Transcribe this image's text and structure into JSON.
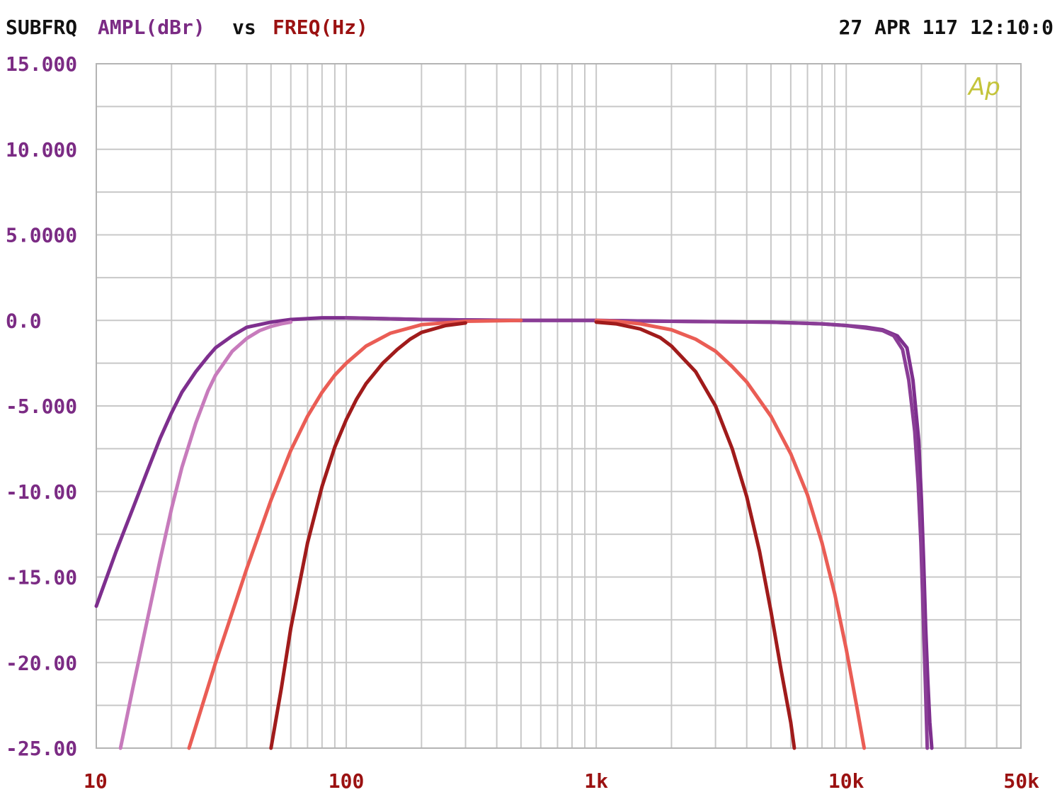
{
  "header": {
    "instrument": "SUBFRQ",
    "y_quantity": "AMPL(dBr)",
    "vs": "vs",
    "x_quantity": "FREQ(Hz)",
    "timestamp": "27 APR 117 12:10:0"
  },
  "logo_text": "Ap",
  "colors": {
    "black": "#111111",
    "purple_text": "#7b2b84",
    "red_text": "#9b1111",
    "logo": "#c4c43a"
  },
  "chart_data": {
    "type": "line",
    "x_scale": "log",
    "xlim": [
      10,
      50000
    ],
    "ylim": [
      -25,
      15
    ],
    "grid": true,
    "y_ticks": [
      {
        "value": 15,
        "label": "15.000"
      },
      {
        "value": 10,
        "label": "10.000"
      },
      {
        "value": 5,
        "label": "5.0000"
      },
      {
        "value": 0,
        "label": "0.0"
      },
      {
        "value": -5,
        "label": "-5.000"
      },
      {
        "value": -10,
        "label": "-10.00"
      },
      {
        "value": -15,
        "label": "-15.00"
      },
      {
        "value": -20,
        "label": "-20.00"
      },
      {
        "value": -25,
        "label": "-25.00"
      }
    ],
    "x_ticks": [
      {
        "value": 10,
        "label": "10"
      },
      {
        "value": 100,
        "label": "100"
      },
      {
        "value": 1000,
        "label": "1k"
      },
      {
        "value": 10000,
        "label": "10k"
      },
      {
        "value": 50000,
        "label": "50k"
      }
    ],
    "series": [
      {
        "color": "#7e2f8e",
        "points": [
          [
            10,
            -16.7
          ],
          [
            12,
            -13.5
          ],
          [
            14,
            -11
          ],
          [
            16,
            -8.8
          ],
          [
            18,
            -6.9
          ],
          [
            20,
            -5.4
          ],
          [
            22,
            -4.2
          ],
          [
            25,
            -3
          ],
          [
            28,
            -2.1
          ],
          [
            30,
            -1.6
          ],
          [
            35,
            -0.9
          ],
          [
            40,
            -0.4
          ],
          [
            50,
            -0.1
          ],
          [
            60,
            0.05
          ],
          [
            80,
            0.15
          ],
          [
            100,
            0.15
          ],
          [
            200,
            0.05
          ],
          [
            500,
            0
          ],
          [
            1000,
            0
          ],
          [
            2000,
            -0.05
          ],
          [
            5000,
            -0.1
          ],
          [
            8000,
            -0.2
          ],
          [
            10000,
            -0.3
          ],
          [
            12000,
            -0.4
          ],
          [
            14000,
            -0.55
          ],
          [
            16000,
            -0.9
          ],
          [
            17500,
            -1.6
          ],
          [
            18500,
            -3.5
          ],
          [
            19500,
            -7
          ],
          [
            20000,
            -10.5
          ],
          [
            20400,
            -14
          ],
          [
            20800,
            -18
          ],
          [
            21200,
            -21
          ],
          [
            21600,
            -23.5
          ],
          [
            22000,
            -25
          ]
        ]
      },
      {
        "color": "#8a3d96",
        "points": [
          [
            100,
            0.15
          ],
          [
            200,
            0.05
          ],
          [
            500,
            0
          ],
          [
            1000,
            0
          ],
          [
            2000,
            -0.05
          ],
          [
            5000,
            -0.1
          ],
          [
            8000,
            -0.2
          ],
          [
            10000,
            -0.3
          ],
          [
            12000,
            -0.45
          ],
          [
            14000,
            -0.6
          ],
          [
            15500,
            -0.9
          ],
          [
            16800,
            -1.7
          ],
          [
            17800,
            -3.5
          ],
          [
            18800,
            -6.5
          ],
          [
            19400,
            -9.5
          ],
          [
            19900,
            -13
          ],
          [
            20300,
            -17
          ],
          [
            20700,
            -21
          ],
          [
            21100,
            -25
          ]
        ]
      },
      {
        "color": "#c77bbc",
        "points": [
          [
            12.5,
            -25
          ],
          [
            14,
            -21.5
          ],
          [
            16,
            -17.5
          ],
          [
            18,
            -14
          ],
          [
            20,
            -11
          ],
          [
            22,
            -8.6
          ],
          [
            25,
            -6
          ],
          [
            28,
            -4.1
          ],
          [
            30,
            -3.2
          ],
          [
            35,
            -1.8
          ],
          [
            40,
            -1.05
          ],
          [
            45,
            -0.6
          ],
          [
            50,
            -0.35
          ],
          [
            55,
            -0.2
          ],
          [
            60,
            -0.1
          ]
        ]
      },
      {
        "color": "#ea5d55",
        "points": [
          [
            23.5,
            -25
          ],
          [
            30,
            -20
          ],
          [
            40,
            -14.5
          ],
          [
            50,
            -10.5
          ],
          [
            60,
            -7.6
          ],
          [
            70,
            -5.6
          ],
          [
            80,
            -4.2
          ],
          [
            90,
            -3.2
          ],
          [
            100,
            -2.5
          ],
          [
            120,
            -1.5
          ],
          [
            150,
            -0.75
          ],
          [
            200,
            -0.25
          ],
          [
            300,
            -0.05
          ],
          [
            500,
            0
          ]
        ]
      },
      {
        "color": "#a01b1b",
        "points": [
          [
            50,
            -25
          ],
          [
            55,
            -21.5
          ],
          [
            60,
            -18
          ],
          [
            70,
            -13
          ],
          [
            80,
            -9.7
          ],
          [
            90,
            -7.4
          ],
          [
            100,
            -5.8
          ],
          [
            110,
            -4.6
          ],
          [
            120,
            -3.7
          ],
          [
            140,
            -2.5
          ],
          [
            160,
            -1.7
          ],
          [
            180,
            -1.1
          ],
          [
            200,
            -0.7
          ],
          [
            250,
            -0.3
          ],
          [
            300,
            -0.15
          ]
        ]
      },
      {
        "color": "#ea5d55",
        "points": [
          [
            1000,
            0
          ],
          [
            1200,
            -0.05
          ],
          [
            1500,
            -0.2
          ],
          [
            2000,
            -0.55
          ],
          [
            2500,
            -1.1
          ],
          [
            3000,
            -1.8
          ],
          [
            3500,
            -2.7
          ],
          [
            4000,
            -3.6
          ],
          [
            5000,
            -5.6
          ],
          [
            6000,
            -7.8
          ],
          [
            7000,
            -10.2
          ],
          [
            8000,
            -13
          ],
          [
            9000,
            -16
          ],
          [
            10000,
            -19.2
          ],
          [
            11000,
            -22.5
          ],
          [
            11800,
            -25
          ]
        ]
      },
      {
        "color": "#a01b1b",
        "points": [
          [
            1000,
            -0.1
          ],
          [
            1200,
            -0.2
          ],
          [
            1500,
            -0.5
          ],
          [
            1800,
            -1
          ],
          [
            2000,
            -1.5
          ],
          [
            2500,
            -3
          ],
          [
            3000,
            -5
          ],
          [
            3500,
            -7.5
          ],
          [
            4000,
            -10.3
          ],
          [
            4500,
            -13.5
          ],
          [
            5000,
            -17
          ],
          [
            5500,
            -20.5
          ],
          [
            6000,
            -23.5
          ],
          [
            6200,
            -25
          ]
        ]
      }
    ]
  }
}
